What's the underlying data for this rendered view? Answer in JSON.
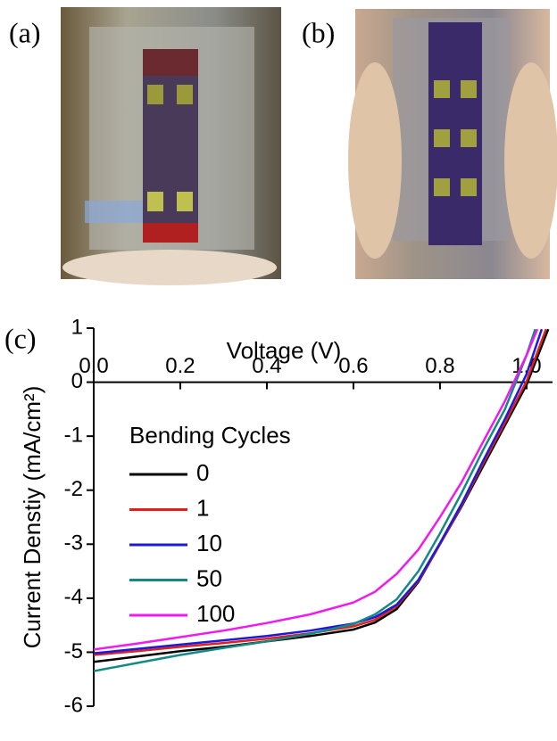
{
  "panel_labels": [
    "(a)",
    "(b)"
  ],
  "chart_data": {
    "type": "line",
    "panel_label": "(c)",
    "x_label": "Voltage (V)",
    "y_label": "Current Denstiy (mA/cm²)",
    "legend_title": "Bending Cycles",
    "xlim": [
      0,
      1.06
    ],
    "ylim": [
      -6,
      1
    ],
    "xticks": [
      {
        "value": 0,
        "label": "0.0"
      },
      0.2,
      0.4,
      0.6,
      0.8,
      {
        "value": 1,
        "label": "1.0"
      }
    ],
    "yticks": [
      1,
      0,
      -1,
      -2,
      -3,
      -4,
      -5,
      -6
    ],
    "series": [
      {
        "name": "0",
        "color": "#000000",
        "x": [
          0,
          0.1,
          0.2,
          0.3,
          0.4,
          0.5,
          0.6,
          0.65,
          0.7,
          0.75,
          0.8,
          0.85,
          0.9,
          0.95,
          1.0,
          1.05
        ],
        "values": [
          -5.18,
          -5.08,
          -4.98,
          -4.9,
          -4.8,
          -4.7,
          -4.58,
          -4.45,
          -4.2,
          -3.7,
          -3.0,
          -2.3,
          -1.55,
          -0.8,
          -0.05,
          0.98
        ]
      },
      {
        "name": "1",
        "color": "#e0201b",
        "x": [
          0,
          0.1,
          0.2,
          0.3,
          0.4,
          0.5,
          0.6,
          0.65,
          0.7,
          0.75,
          0.8,
          0.85,
          0.9,
          0.95,
          1.0,
          1.045
        ],
        "values": [
          -5.05,
          -4.98,
          -4.9,
          -4.83,
          -4.75,
          -4.65,
          -4.52,
          -4.4,
          -4.15,
          -3.68,
          -3.0,
          -2.28,
          -1.5,
          -0.75,
          0.02,
          0.98
        ]
      },
      {
        "name": "10",
        "color": "#1a1adc",
        "x": [
          0,
          0.1,
          0.2,
          0.3,
          0.4,
          0.5,
          0.6,
          0.65,
          0.7,
          0.75,
          0.8,
          0.85,
          0.9,
          0.95,
          1.0,
          1.035
        ],
        "values": [
          -5.02,
          -4.94,
          -4.86,
          -4.78,
          -4.7,
          -4.6,
          -4.47,
          -4.35,
          -4.12,
          -3.66,
          -2.98,
          -2.25,
          -1.45,
          -0.68,
          0.15,
          0.98
        ]
      },
      {
        "name": "50",
        "color": "#138a86",
        "x": [
          0,
          0.1,
          0.2,
          0.3,
          0.4,
          0.5,
          0.6,
          0.65,
          0.7,
          0.75,
          0.8,
          0.85,
          0.9,
          0.95,
          1.0,
          1.02
        ],
        "values": [
          -5.35,
          -5.2,
          -5.05,
          -4.92,
          -4.8,
          -4.66,
          -4.48,
          -4.3,
          -4.02,
          -3.5,
          -2.8,
          -2.05,
          -1.25,
          -0.5,
          0.5,
          0.98
        ]
      },
      {
        "name": "100",
        "color": "#ee1aee",
        "x": [
          0,
          0.1,
          0.2,
          0.3,
          0.4,
          0.5,
          0.6,
          0.65,
          0.7,
          0.75,
          0.8,
          0.85,
          0.9,
          0.95,
          1.0,
          1.025
        ],
        "values": [
          -4.95,
          -4.84,
          -4.72,
          -4.6,
          -4.46,
          -4.3,
          -4.08,
          -3.88,
          -3.55,
          -3.1,
          -2.5,
          -1.85,
          -1.1,
          -0.35,
          0.5,
          0.98
        ]
      }
    ]
  }
}
